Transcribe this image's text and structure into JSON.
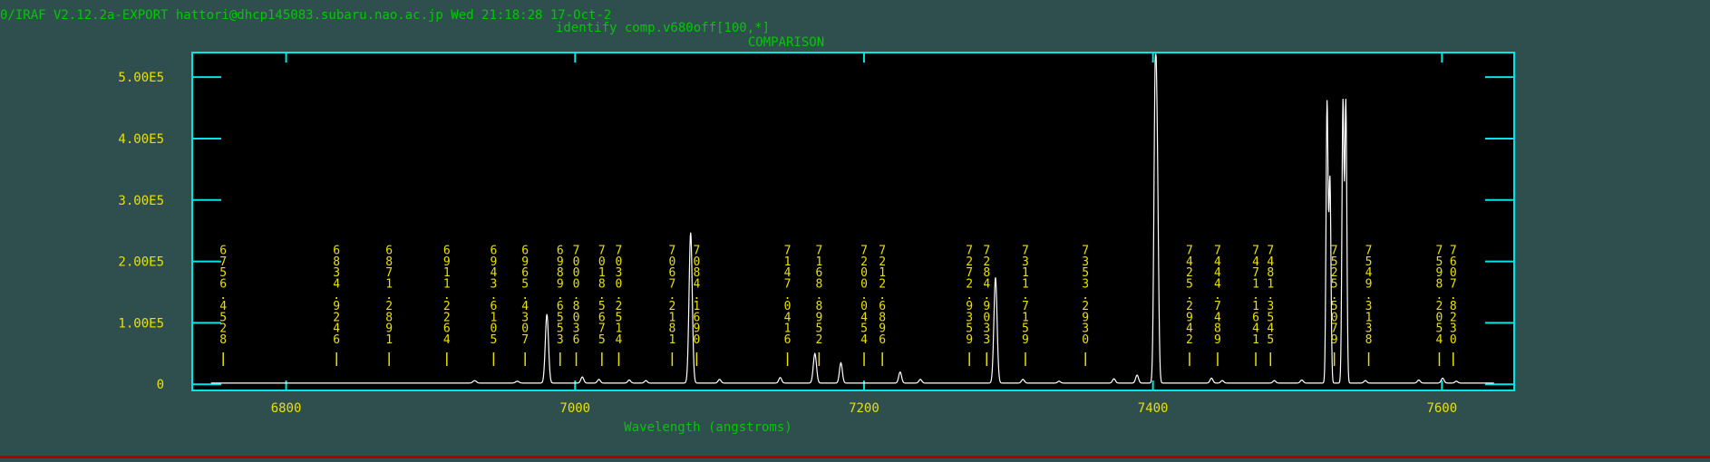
{
  "header": {
    "system_line": "0/IRAF V2.12.2a-EXPORT hattori@dhcp145083.subaru.nao.ac.jp Wed 21:18:28 17-Oct-2",
    "command": "identify comp.v680off[100,*]"
  },
  "colors": {
    "background": "#2f4f4f",
    "frame": "#00e5e5",
    "plot_bg": "#000000",
    "spectrum": "#ffffff",
    "label_text": "#00c800",
    "lines": "#e8e000"
  },
  "chart_data": {
    "type": "line",
    "title": "COMPARISON",
    "xlabel": "Wavelength (angstroms)",
    "ylabel": "",
    "xlim": [
      6735,
      7650
    ],
    "ylim": [
      -10000,
      540000
    ],
    "grid": false,
    "x_ticks": [
      6800,
      7000,
      7200,
      7400,
      7600
    ],
    "x_tick_labels": [
      "6800",
      "7000",
      "7200",
      "7400",
      "7600"
    ],
    "y_ticks": [
      0,
      100000,
      200000,
      300000,
      400000,
      500000
    ],
    "y_tick_labels": [
      "0",
      "1.00E5",
      "2.00E5",
      "3.00E5",
      "4.00E5",
      "5.00E5"
    ],
    "spectrum": {
      "baseline": 2000,
      "peaks": [
        {
          "x": 6930.5,
          "y": 4000,
          "w": 1.2
        },
        {
          "x": 6960.0,
          "y": 3000,
          "w": 1.2
        },
        {
          "x": 6980.5,
          "y": 112000,
          "w": 1.1
        },
        {
          "x": 7005.0,
          "y": 10000,
          "w": 1.0
        },
        {
          "x": 7016.5,
          "y": 6000,
          "w": 1.0
        },
        {
          "x": 7037.5,
          "y": 5000,
          "w": 1.0
        },
        {
          "x": 7049.0,
          "y": 4000,
          "w": 1.0
        },
        {
          "x": 7080.0,
          "y": 245000,
          "w": 1.1
        },
        {
          "x": 7100.0,
          "y": 6000,
          "w": 1.0
        },
        {
          "x": 7142.0,
          "y": 9000,
          "w": 1.0
        },
        {
          "x": 7166.0,
          "y": 48000,
          "w": 1.1
        },
        {
          "x": 7184.0,
          "y": 33000,
          "w": 1.0
        },
        {
          "x": 7225.0,
          "y": 18000,
          "w": 1.0
        },
        {
          "x": 7239.0,
          "y": 6000,
          "w": 1.0
        },
        {
          "x": 7291.0,
          "y": 172000,
          "w": 1.1
        },
        {
          "x": 7310.0,
          "y": 6000,
          "w": 1.0
        },
        {
          "x": 7335.0,
          "y": 3000,
          "w": 1.0
        },
        {
          "x": 7373.0,
          "y": 7000,
          "w": 1.0
        },
        {
          "x": 7389.0,
          "y": 13000,
          "w": 1.0
        },
        {
          "x": 7401.5,
          "y": 450000,
          "w": 0.9
        },
        {
          "x": 7403.0,
          "y": 300000,
          "w": 0.9
        },
        {
          "x": 7440.5,
          "y": 8000,
          "w": 1.0
        },
        {
          "x": 7448.0,
          "y": 4000,
          "w": 1.0
        },
        {
          "x": 7484.0,
          "y": 4000,
          "w": 1.0
        },
        {
          "x": 7503.0,
          "y": 5000,
          "w": 1.0
        },
        {
          "x": 7520.5,
          "y": 455000,
          "w": 0.7
        },
        {
          "x": 7522.5,
          "y": 330000,
          "w": 0.7
        },
        {
          "x": 7531.5,
          "y": 455000,
          "w": 0.7
        },
        {
          "x": 7533.5,
          "y": 455000,
          "w": 0.7
        },
        {
          "x": 7547.0,
          "y": 4000,
          "w": 1.0
        },
        {
          "x": 7584.0,
          "y": 5000,
          "w": 1.0
        },
        {
          "x": 7600.5,
          "y": 8000,
          "w": 1.0
        },
        {
          "x": 7610.0,
          "y": 3000,
          "w": 1.0
        }
      ]
    },
    "identified_lines": [
      {
        "wavelength": 6756.4528,
        "label": "6756.4528"
      },
      {
        "wavelength": 6834.9246,
        "label": "6834.9246"
      },
      {
        "wavelength": 6871.2891,
        "label": "6871.2891"
      },
      {
        "wavelength": 6911.2264,
        "label": "6911.2264"
      },
      {
        "wavelength": 6943.6105,
        "label": "6943.6105"
      },
      {
        "wavelength": 6965.4307,
        "label": "6965.4307"
      },
      {
        "wavelength": 6989.6553,
        "label": "6989.6553"
      },
      {
        "wavelength": 7000.8036,
        "label": "7000.8036"
      },
      {
        "wavelength": 7018.5675,
        "label": "7018.5675"
      },
      {
        "wavelength": 7030.2514,
        "label": "7030.2514"
      },
      {
        "wavelength": 7067.2181,
        "label": "7067.2181"
      },
      {
        "wavelength": 7084.169,
        "label": "7084.1690"
      },
      {
        "wavelength": 7147.0416,
        "label": "7147.0416"
      },
      {
        "wavelength": 7168.8952,
        "label": "7168.8952"
      },
      {
        "wavelength": 7200.0454,
        "label": "7200.0454"
      },
      {
        "wavelength": 7212.6896,
        "label": "7212.6896"
      },
      {
        "wavelength": 7272.9359,
        "label": "7272.9359"
      },
      {
        "wavelength": 7284.9033,
        "label": "7284.9033"
      },
      {
        "wavelength": 7311.7159,
        "label": "7311.7159"
      },
      {
        "wavelength": 7353.293,
        "label": "7353.2930"
      },
      {
        "wavelength": 7425.2942,
        "label": "7425.2942"
      },
      {
        "wavelength": 7444.7489,
        "label": "7444.7489"
      },
      {
        "wavelength": 7471.1641,
        "label": "7471.1641"
      },
      {
        "wavelength": 7481.3545,
        "label": "7481.3545"
      },
      {
        "wavelength": 7525.5079,
        "label": "7525.5079"
      },
      {
        "wavelength": 7549.3138,
        "label": "7549.3138"
      },
      {
        "wavelength": 7598.2054,
        "label": "7598.2054"
      },
      {
        "wavelength": 7607.823,
        "label": "7607.8230"
      }
    ]
  }
}
